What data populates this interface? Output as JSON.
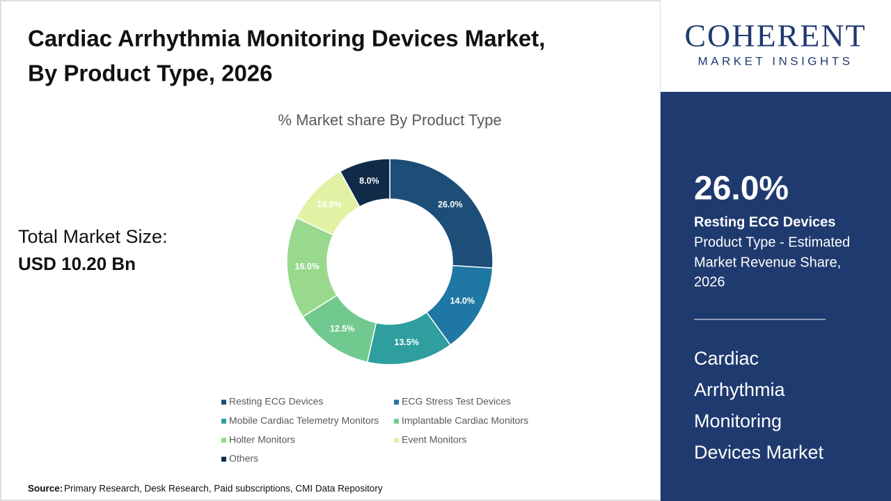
{
  "header": {
    "title_lines": [
      "Cardiac Arrhythmia Monitoring Devices Market,",
      "By Product Type, 2026"
    ]
  },
  "market_size": {
    "label": "Total Market Size:",
    "value": "USD 10.20 Bn"
  },
  "chart_data": {
    "type": "donut",
    "title": "% Market share By Product Type",
    "categories": [
      "Resting ECG Devices",
      "ECG Stress Test Devices",
      "Mobile Cardiac Telemetry Monitors",
      "Implantable Cardiac Monitors",
      "Holter Monitors",
      "Event Monitors",
      "Others"
    ],
    "values": [
      26,
      14,
      13.5,
      12.5,
      16,
      10,
      8
    ],
    "value_labels": [
      "26.0%",
      "14.0%",
      "13.5%",
      "12.5%",
      "16.0%",
      "10.0%",
      "8.0%"
    ],
    "colors": [
      "#1c4e78",
      "#1f77a3",
      "#2e9e9e",
      "#72c98f",
      "#98d98d",
      "#e2f2a4",
      "#0f2b47"
    ]
  },
  "logo": {
    "name": "COHERENT",
    "tagline": "MARKET INSIGHTS"
  },
  "sidebar": {
    "highlight": "26.0%",
    "segment": "Resting ECG Devices",
    "description_lines": [
      "Product Type - Estimated",
      "Market Revenue Share,",
      "2026"
    ],
    "market_lines": [
      "Cardiac",
      "Arrhythmia",
      "Monitoring",
      "Devices Market"
    ]
  },
  "source": {
    "label": "Source:",
    "text": "Primary Research, Desk Research, Paid subscriptions, CMI Data Repository"
  }
}
